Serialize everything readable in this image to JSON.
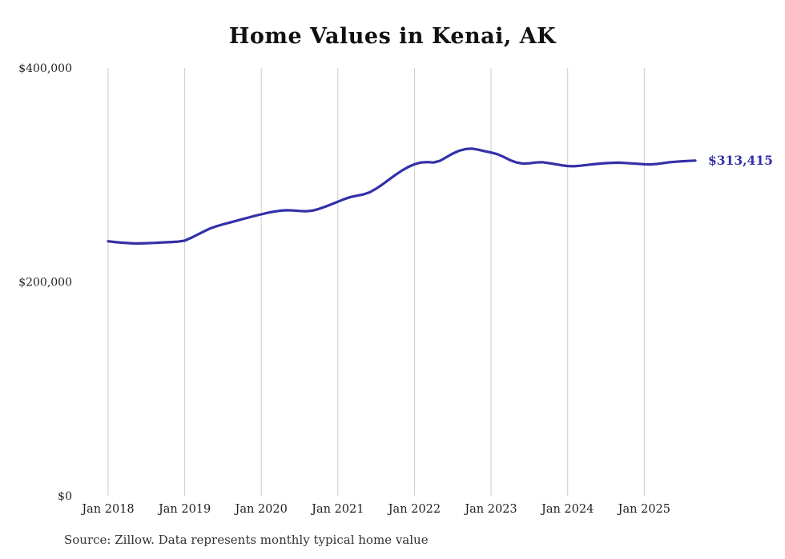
{
  "title": "Home Values in Kenai, AK",
  "source_note": "Source: Zillow. Data represents monthly typical home value",
  "end_label": "$313,415",
  "colors": {
    "line": "#3330a8",
    "grid": "#cccccc",
    "axis_label": "#222222",
    "end_label": "#3330a8"
  },
  "chart_data": {
    "type": "line",
    "title": "Home Values in Kenai, AK",
    "xlabel": "",
    "ylabel": "",
    "ylim": [
      0,
      400000
    ],
    "grid": "vertical-only",
    "legend": "none",
    "y_ticks": [
      {
        "value": 0,
        "label": "$0"
      },
      {
        "value": 200000,
        "label": "$200,000"
      },
      {
        "value": 400000,
        "label": "$400,000"
      }
    ],
    "x_ticks": [
      {
        "index": 0,
        "label": "Jan 2018"
      },
      {
        "index": 12,
        "label": "Jan 2019"
      },
      {
        "index": 24,
        "label": "Jan 2020"
      },
      {
        "index": 36,
        "label": "Jan 2021"
      },
      {
        "index": 48,
        "label": "Jan 2022"
      },
      {
        "index": 60,
        "label": "Jan 2023"
      },
      {
        "index": 72,
        "label": "Jan 2024"
      },
      {
        "index": 84,
        "label": "Jan 2025"
      }
    ],
    "x": [
      "2018-01",
      "2018-02",
      "2018-03",
      "2018-04",
      "2018-05",
      "2018-06",
      "2018-07",
      "2018-08",
      "2018-09",
      "2018-10",
      "2018-11",
      "2018-12",
      "2019-01",
      "2019-02",
      "2019-03",
      "2019-04",
      "2019-05",
      "2019-06",
      "2019-07",
      "2019-08",
      "2019-09",
      "2019-10",
      "2019-11",
      "2019-12",
      "2020-01",
      "2020-02",
      "2020-03",
      "2020-04",
      "2020-05",
      "2020-06",
      "2020-07",
      "2020-08",
      "2020-09",
      "2020-10",
      "2020-11",
      "2020-12",
      "2021-01",
      "2021-02",
      "2021-03",
      "2021-04",
      "2021-05",
      "2021-06",
      "2021-07",
      "2021-08",
      "2021-09",
      "2021-10",
      "2021-11",
      "2021-12",
      "2022-01",
      "2022-02",
      "2022-03",
      "2022-04",
      "2022-05",
      "2022-06",
      "2022-07",
      "2022-08",
      "2022-09",
      "2022-10",
      "2022-11",
      "2022-12",
      "2023-01",
      "2023-02",
      "2023-03",
      "2023-04",
      "2023-05",
      "2023-06",
      "2023-07",
      "2023-08",
      "2023-09",
      "2023-10",
      "2023-11",
      "2023-12",
      "2024-01",
      "2024-02",
      "2024-03",
      "2024-04",
      "2024-05",
      "2024-06",
      "2024-07",
      "2024-08",
      "2024-09",
      "2024-10",
      "2024-11",
      "2024-12",
      "2025-01",
      "2025-02",
      "2025-03",
      "2025-04",
      "2025-05",
      "2025-06",
      "2025-07",
      "2025-08",
      "2025-09"
    ],
    "values": [
      238000,
      237300,
      236700,
      236300,
      236000,
      236000,
      236200,
      236400,
      236700,
      237000,
      237300,
      237700,
      238600,
      241200,
      244200,
      247200,
      250000,
      252000,
      253800,
      255400,
      257000,
      258600,
      260200,
      261800,
      263200,
      264600,
      265700,
      266600,
      267000,
      266800,
      266300,
      266000,
      266600,
      268200,
      270300,
      272600,
      275000,
      277400,
      279400,
      280600,
      281800,
      283800,
      287200,
      291200,
      295600,
      300000,
      304000,
      307400,
      310000,
      311600,
      312000,
      311600,
      313200,
      316600,
      320000,
      322600,
      324200,
      324600,
      323600,
      322200,
      321000,
      319400,
      316800,
      313800,
      311600,
      310600,
      310900,
      311600,
      311900,
      311100,
      310100,
      309100,
      308300,
      308100,
      308600,
      309300,
      310000,
      310600,
      311000,
      311300,
      311500,
      311200,
      310800,
      310400,
      310000,
      309800,
      310300,
      311100,
      311900,
      312400,
      312800,
      313100,
      313415
    ]
  }
}
